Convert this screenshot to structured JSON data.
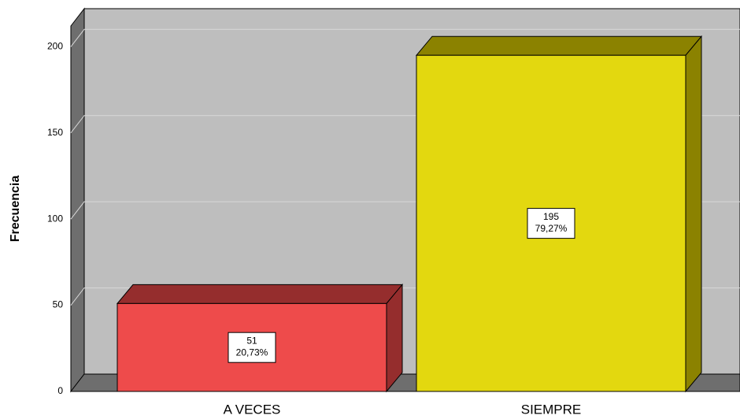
{
  "chart_data": {
    "type": "bar3d",
    "y_axis_label": "Frecuencia",
    "categories": [
      "A VECES",
      "SIEMPRE"
    ],
    "values": [
      51,
      195
    ],
    "percent_labels": [
      "20,73%",
      "79,27%"
    ],
    "colors": [
      "#ee4b4b",
      "#e3d80f"
    ],
    "side_colors": [
      "#952d2d",
      "#8b8200"
    ],
    "ylim": [
      0,
      212
    ],
    "yticks": [
      0,
      50,
      100,
      150,
      200
    ],
    "grid": true
  }
}
